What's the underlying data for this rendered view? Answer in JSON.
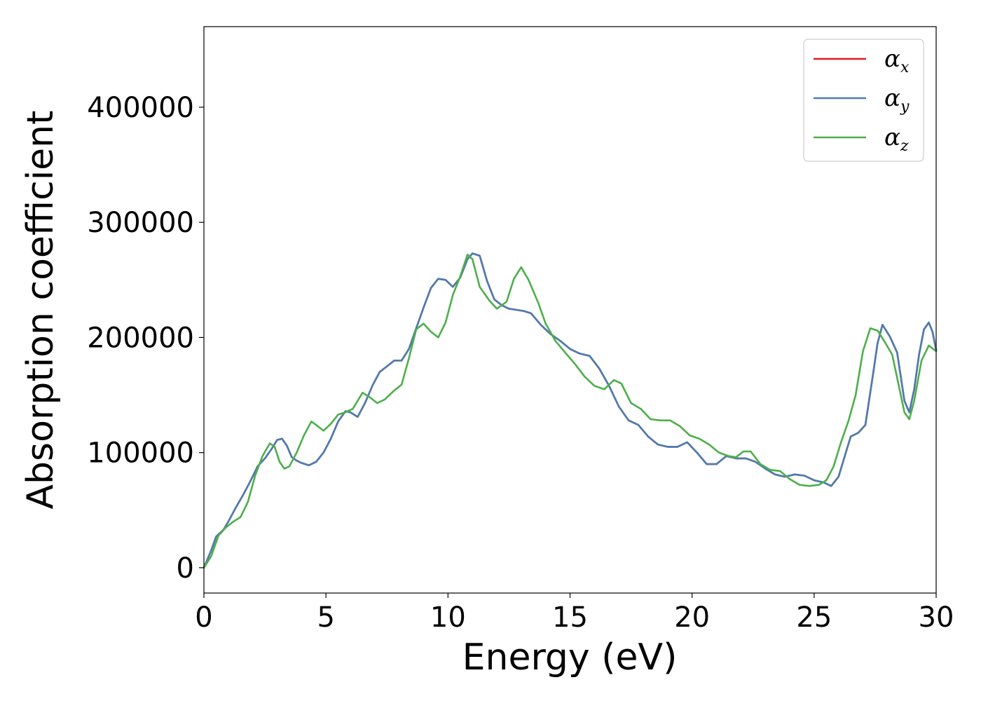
{
  "chart_data": {
    "type": "line",
    "title": "",
    "xlabel": "Energy (eV)",
    "ylabel": "Absorption coefficient",
    "xlim": [
      0,
      30
    ],
    "ylim": [
      -22000,
      470000
    ],
    "xticks": [
      0,
      5,
      10,
      15,
      20,
      25,
      30
    ],
    "yticks": [
      0,
      100000,
      200000,
      300000,
      400000
    ],
    "xtick_labels": [
      "0",
      "5",
      "10",
      "15",
      "20",
      "25",
      "30"
    ],
    "ytick_labels": [
      "0",
      "100000",
      "200000",
      "300000",
      "400000"
    ],
    "grid": false,
    "legend_position": "top-right",
    "series": [
      {
        "name": "α",
        "subscript": "x",
        "color": "#e41a1c",
        "x": [
          0,
          0.3,
          0.5,
          0.8,
          1.0,
          1.3,
          1.6,
          1.9,
          2.2,
          2.5,
          2.8,
          3.0,
          3.2,
          3.4,
          3.6,
          3.8,
          4.0,
          4.3,
          4.6,
          4.9,
          5.2,
          5.5,
          5.8,
          6.0,
          6.3,
          6.6,
          6.9,
          7.2,
          7.5,
          7.8,
          8.1,
          8.4,
          8.7,
          9.0,
          9.3,
          9.6,
          9.9,
          10.2,
          10.5,
          10.8,
          11.0,
          11.3,
          11.6,
          11.9,
          12.2,
          12.5,
          12.8,
          13.1,
          13.4,
          13.8,
          14.2,
          14.6,
          15.0,
          15.4,
          15.8,
          16.2,
          16.6,
          17.0,
          17.4,
          17.8,
          18.2,
          18.6,
          19.0,
          19.4,
          19.8,
          20.2,
          20.6,
          21.0,
          21.4,
          21.8,
          22.2,
          22.6,
          23.0,
          23.4,
          23.8,
          24.2,
          24.6,
          25.0,
          25.4,
          25.7,
          26.0,
          26.3,
          26.5,
          26.8,
          27.1,
          27.4,
          27.6,
          27.8,
          28.1,
          28.4,
          28.7,
          28.9,
          29.1,
          29.3,
          29.5,
          29.7,
          29.85,
          30.0
        ],
        "y": [
          0,
          15000,
          27000,
          33000,
          40000,
          52000,
          63000,
          75000,
          88000,
          95000,
          104000,
          111000,
          112000,
          106000,
          96000,
          93000,
          91000,
          89000,
          92000,
          100000,
          112000,
          127000,
          136000,
          135000,
          131000,
          143000,
          158000,
          170000,
          175000,
          180000,
          180000,
          190000,
          208000,
          226000,
          243000,
          251000,
          250000,
          244000,
          252000,
          268000,
          273000,
          271000,
          249000,
          233000,
          228000,
          225000,
          224000,
          223000,
          221000,
          211000,
          203000,
          197000,
          190000,
          186000,
          184000,
          173000,
          158000,
          140000,
          128000,
          124000,
          114000,
          107000,
          105000,
          105000,
          109000,
          100000,
          90000,
          90000,
          97000,
          95000,
          95000,
          92000,
          86000,
          81000,
          79000,
          81000,
          80000,
          76000,
          74000,
          71000,
          79000,
          100000,
          114000,
          117000,
          124000,
          166000,
          195000,
          211000,
          201000,
          187000,
          145000,
          135000,
          155000,
          185000,
          207000,
          213000,
          205000,
          189000
        ]
      },
      {
        "name": "α",
        "subscript": "y",
        "color": "#4a7db3",
        "x": [
          0,
          0.3,
          0.5,
          0.8,
          1.0,
          1.3,
          1.6,
          1.9,
          2.2,
          2.5,
          2.8,
          3.0,
          3.2,
          3.4,
          3.6,
          3.8,
          4.0,
          4.3,
          4.6,
          4.9,
          5.2,
          5.5,
          5.8,
          6.0,
          6.3,
          6.6,
          6.9,
          7.2,
          7.5,
          7.8,
          8.1,
          8.4,
          8.7,
          9.0,
          9.3,
          9.6,
          9.9,
          10.2,
          10.5,
          10.8,
          11.0,
          11.3,
          11.6,
          11.9,
          12.2,
          12.5,
          12.8,
          13.1,
          13.4,
          13.8,
          14.2,
          14.6,
          15.0,
          15.4,
          15.8,
          16.2,
          16.6,
          17.0,
          17.4,
          17.8,
          18.2,
          18.6,
          19.0,
          19.4,
          19.8,
          20.2,
          20.6,
          21.0,
          21.4,
          21.8,
          22.2,
          22.6,
          23.0,
          23.4,
          23.8,
          24.2,
          24.6,
          25.0,
          25.4,
          25.7,
          26.0,
          26.3,
          26.5,
          26.8,
          27.1,
          27.4,
          27.6,
          27.8,
          28.1,
          28.4,
          28.7,
          28.9,
          29.1,
          29.3,
          29.5,
          29.7,
          29.85,
          30.0
        ],
        "y": [
          0,
          15000,
          27000,
          33000,
          40000,
          52000,
          63000,
          75000,
          88000,
          95000,
          104000,
          111000,
          112000,
          106000,
          96000,
          93000,
          91000,
          89000,
          92000,
          100000,
          112000,
          127000,
          136000,
          135000,
          131000,
          143000,
          158000,
          170000,
          175000,
          180000,
          180000,
          190000,
          208000,
          226000,
          243000,
          251000,
          250000,
          244000,
          252000,
          268000,
          273000,
          271000,
          249000,
          233000,
          228000,
          225000,
          224000,
          223000,
          221000,
          211000,
          203000,
          197000,
          190000,
          186000,
          184000,
          173000,
          158000,
          140000,
          128000,
          124000,
          114000,
          107000,
          105000,
          105000,
          109000,
          100000,
          90000,
          90000,
          97000,
          95000,
          95000,
          92000,
          86000,
          81000,
          79000,
          81000,
          80000,
          76000,
          74000,
          71000,
          79000,
          100000,
          114000,
          117000,
          124000,
          166000,
          195000,
          211000,
          201000,
          187000,
          145000,
          135000,
          155000,
          185000,
          207000,
          213000,
          205000,
          189000
        ]
      },
      {
        "name": "α",
        "subscript": "z",
        "color": "#4daf4a",
        "x": [
          0,
          0.3,
          0.6,
          0.9,
          1.2,
          1.5,
          1.8,
          2.1,
          2.4,
          2.7,
          2.9,
          3.1,
          3.3,
          3.5,
          3.8,
          4.1,
          4.4,
          4.6,
          4.9,
          5.2,
          5.5,
          5.8,
          6.1,
          6.5,
          6.8,
          7.1,
          7.4,
          7.8,
          8.1,
          8.4,
          8.7,
          9.0,
          9.3,
          9.6,
          9.9,
          10.2,
          10.5,
          10.8,
          11.0,
          11.3,
          11.7,
          12.0,
          12.4,
          12.7,
          13.0,
          13.3,
          13.7,
          14.0,
          14.4,
          14.8,
          15.2,
          15.6,
          16.0,
          16.4,
          16.8,
          17.1,
          17.5,
          17.9,
          18.3,
          18.7,
          19.1,
          19.5,
          19.9,
          20.3,
          20.7,
          21.1,
          21.5,
          21.8,
          22.1,
          22.4,
          22.8,
          23.2,
          23.6,
          24.0,
          24.4,
          24.8,
          25.2,
          25.5,
          25.8,
          26.1,
          26.4,
          26.7,
          27.0,
          27.3,
          27.6,
          27.9,
          28.2,
          28.5,
          28.7,
          28.9,
          29.1,
          29.4,
          29.7,
          30.0
        ],
        "y": [
          0,
          10000,
          28000,
          35000,
          40000,
          44000,
          57000,
          80000,
          97000,
          108000,
          105000,
          92000,
          86000,
          88000,
          100000,
          115000,
          127000,
          124000,
          119000,
          125000,
          133000,
          135000,
          138000,
          152000,
          148000,
          143000,
          146000,
          154000,
          159000,
          182000,
          207000,
          212000,
          205000,
          200000,
          213000,
          237000,
          253000,
          272000,
          268000,
          244000,
          232000,
          225000,
          231000,
          251000,
          261000,
          250000,
          230000,
          212000,
          197000,
          187000,
          177000,
          166000,
          158000,
          155000,
          163000,
          160000,
          143000,
          138000,
          129000,
          128000,
          128000,
          123000,
          115000,
          112000,
          107000,
          100000,
          97000,
          96000,
          101000,
          101000,
          90000,
          85000,
          84000,
          77000,
          72000,
          71000,
          72000,
          76000,
          88000,
          109000,
          127000,
          150000,
          188000,
          208000,
          206000,
          196000,
          185000,
          155000,
          135000,
          129000,
          145000,
          180000,
          193000,
          188000
        ]
      }
    ]
  }
}
